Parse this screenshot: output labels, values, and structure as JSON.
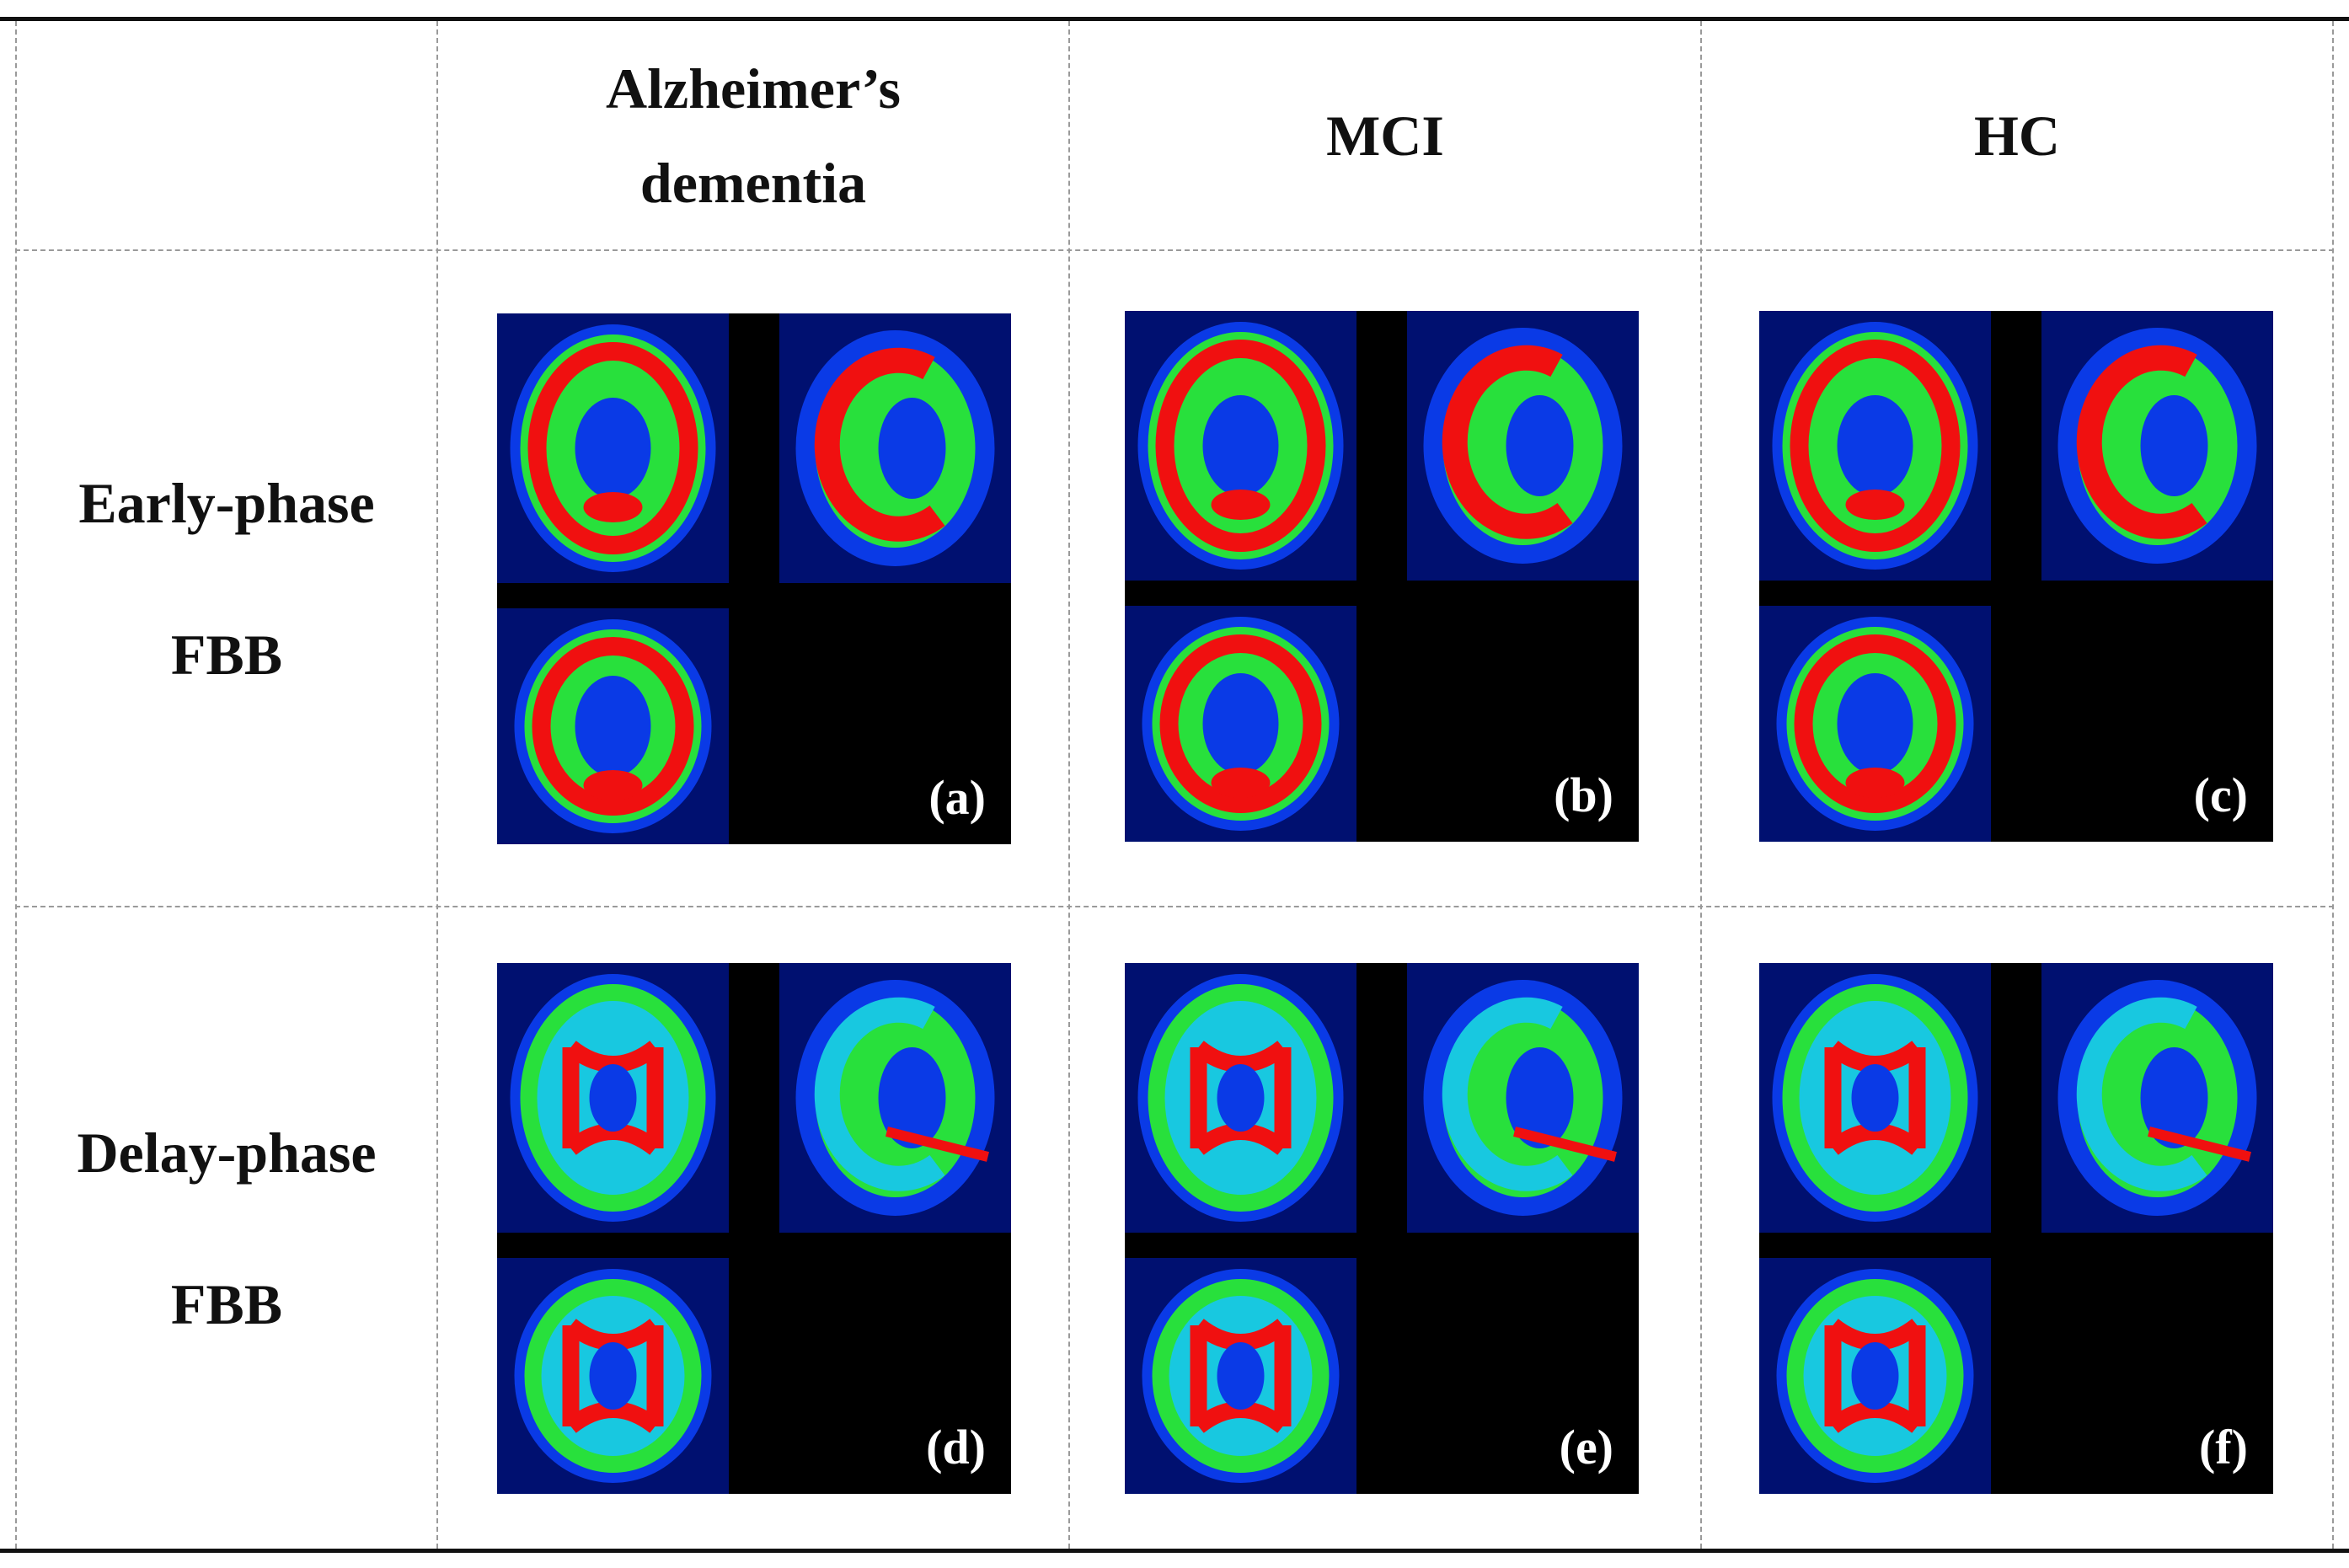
{
  "header": {
    "corner": "",
    "columns": [
      {
        "line1": "Alzheimer’s",
        "line2": "dementia"
      },
      {
        "line1": "MCI",
        "line2": ""
      },
      {
        "line1": "HC",
        "line2": ""
      }
    ]
  },
  "rows": [
    {
      "line1": "Early-phase",
      "line2": "FBB"
    },
    {
      "line1": "Delay-phase",
      "line2": "FBB"
    }
  ],
  "panels": [
    {
      "label": "(a)",
      "group": "Alzheimer's dementia",
      "phase": "early"
    },
    {
      "label": "(b)",
      "group": "MCI",
      "phase": "early"
    },
    {
      "label": "(c)",
      "group": "HC",
      "phase": "early"
    },
    {
      "label": "(d)",
      "group": "Alzheimer's dementia",
      "phase": "delay"
    },
    {
      "label": "(e)",
      "group": "MCI",
      "phase": "delay"
    },
    {
      "label": "(f)",
      "group": "HC",
      "phase": "delay"
    }
  ],
  "colors": {
    "scan_background": "#001070",
    "low_uptake": "#0a3ae6",
    "mid_uptake": "#18c8e0",
    "green_uptake": "#28e03c",
    "high_uptake": "#f01010"
  }
}
